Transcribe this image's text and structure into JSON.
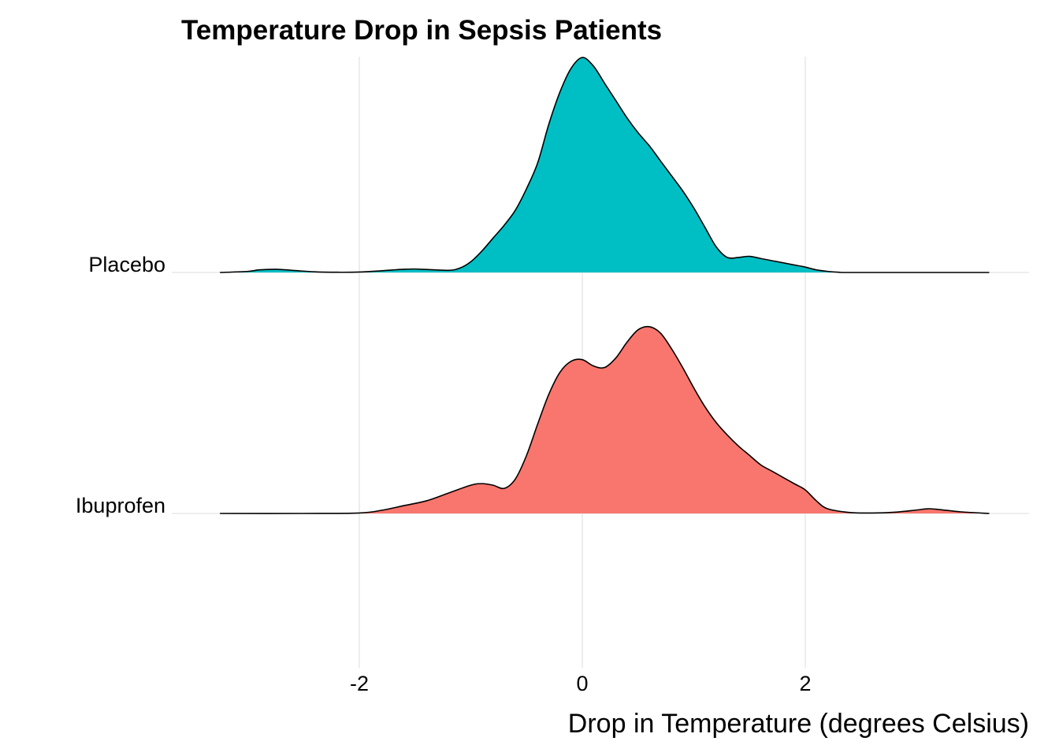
{
  "chart_data": {
    "type": "area",
    "subtype": "ridgeline density",
    "title": "Temperature Drop in Sepsis Patients",
    "xlabel": "Drop in Temperature (degrees Celsius)",
    "ylabel": "",
    "xlim": [
      -3.2,
      3.6
    ],
    "x_ticks": [
      -2,
      0,
      2
    ],
    "x_tick_labels": [
      "-2",
      "0",
      "2"
    ],
    "grid": "vertical major lines",
    "legend": "none",
    "series": [
      {
        "name": "Placebo",
        "color": "#00BFC4",
        "relative_scale": 1.0,
        "x": [
          -3.25,
          -3.0,
          -2.9,
          -2.75,
          -2.6,
          -2.4,
          -2.2,
          -2.0,
          -1.8,
          -1.6,
          -1.5,
          -1.4,
          -1.2,
          -1.1,
          -1.0,
          -0.9,
          -0.8,
          -0.7,
          -0.6,
          -0.5,
          -0.4,
          -0.3,
          -0.2,
          -0.1,
          0.0,
          0.1,
          0.2,
          0.3,
          0.4,
          0.5,
          0.6,
          0.7,
          0.8,
          0.9,
          1.0,
          1.1,
          1.2,
          1.3,
          1.4,
          1.5,
          1.6,
          1.7,
          1.8,
          1.9,
          2.0,
          2.1,
          2.2,
          2.3,
          2.4,
          3.0,
          3.65
        ],
        "density": [
          0.0,
          0.005,
          0.012,
          0.015,
          0.01,
          0.003,
          0.001,
          0.002,
          0.008,
          0.015,
          0.016,
          0.014,
          0.01,
          0.02,
          0.05,
          0.1,
          0.16,
          0.22,
          0.29,
          0.39,
          0.51,
          0.69,
          0.84,
          0.95,
          1.0,
          0.96,
          0.88,
          0.8,
          0.72,
          0.65,
          0.59,
          0.52,
          0.45,
          0.38,
          0.3,
          0.21,
          0.12,
          0.07,
          0.07,
          0.075,
          0.065,
          0.055,
          0.045,
          0.035,
          0.025,
          0.012,
          0.005,
          0.001,
          0.0,
          0.0,
          0.0
        ]
      },
      {
        "name": "Ibuprofen",
        "color": "#F8766D",
        "relative_scale": 0.73,
        "x": [
          -3.25,
          -2.5,
          -2.0,
          -1.8,
          -1.6,
          -1.4,
          -1.2,
          -1.0,
          -0.9,
          -0.8,
          -0.7,
          -0.6,
          -0.5,
          -0.4,
          -0.3,
          -0.2,
          -0.1,
          0.0,
          0.1,
          0.2,
          0.3,
          0.4,
          0.5,
          0.6,
          0.7,
          0.8,
          0.9,
          1.0,
          1.1,
          1.2,
          1.3,
          1.4,
          1.5,
          1.6,
          1.7,
          1.8,
          1.9,
          2.0,
          2.1,
          2.2,
          2.4,
          2.6,
          2.8,
          3.0,
          3.1,
          3.2,
          3.4,
          3.65
        ],
        "density": [
          0.0,
          0.0,
          0.003,
          0.02,
          0.05,
          0.08,
          0.13,
          0.18,
          0.19,
          0.18,
          0.16,
          0.22,
          0.37,
          0.57,
          0.76,
          0.9,
          0.97,
          0.98,
          0.94,
          0.93,
          0.99,
          1.09,
          1.17,
          1.19,
          1.15,
          1.05,
          0.93,
          0.8,
          0.68,
          0.58,
          0.5,
          0.43,
          0.37,
          0.31,
          0.27,
          0.23,
          0.19,
          0.15,
          0.08,
          0.03,
          0.006,
          0.003,
          0.008,
          0.022,
          0.03,
          0.025,
          0.01,
          0.0
        ]
      }
    ]
  }
}
